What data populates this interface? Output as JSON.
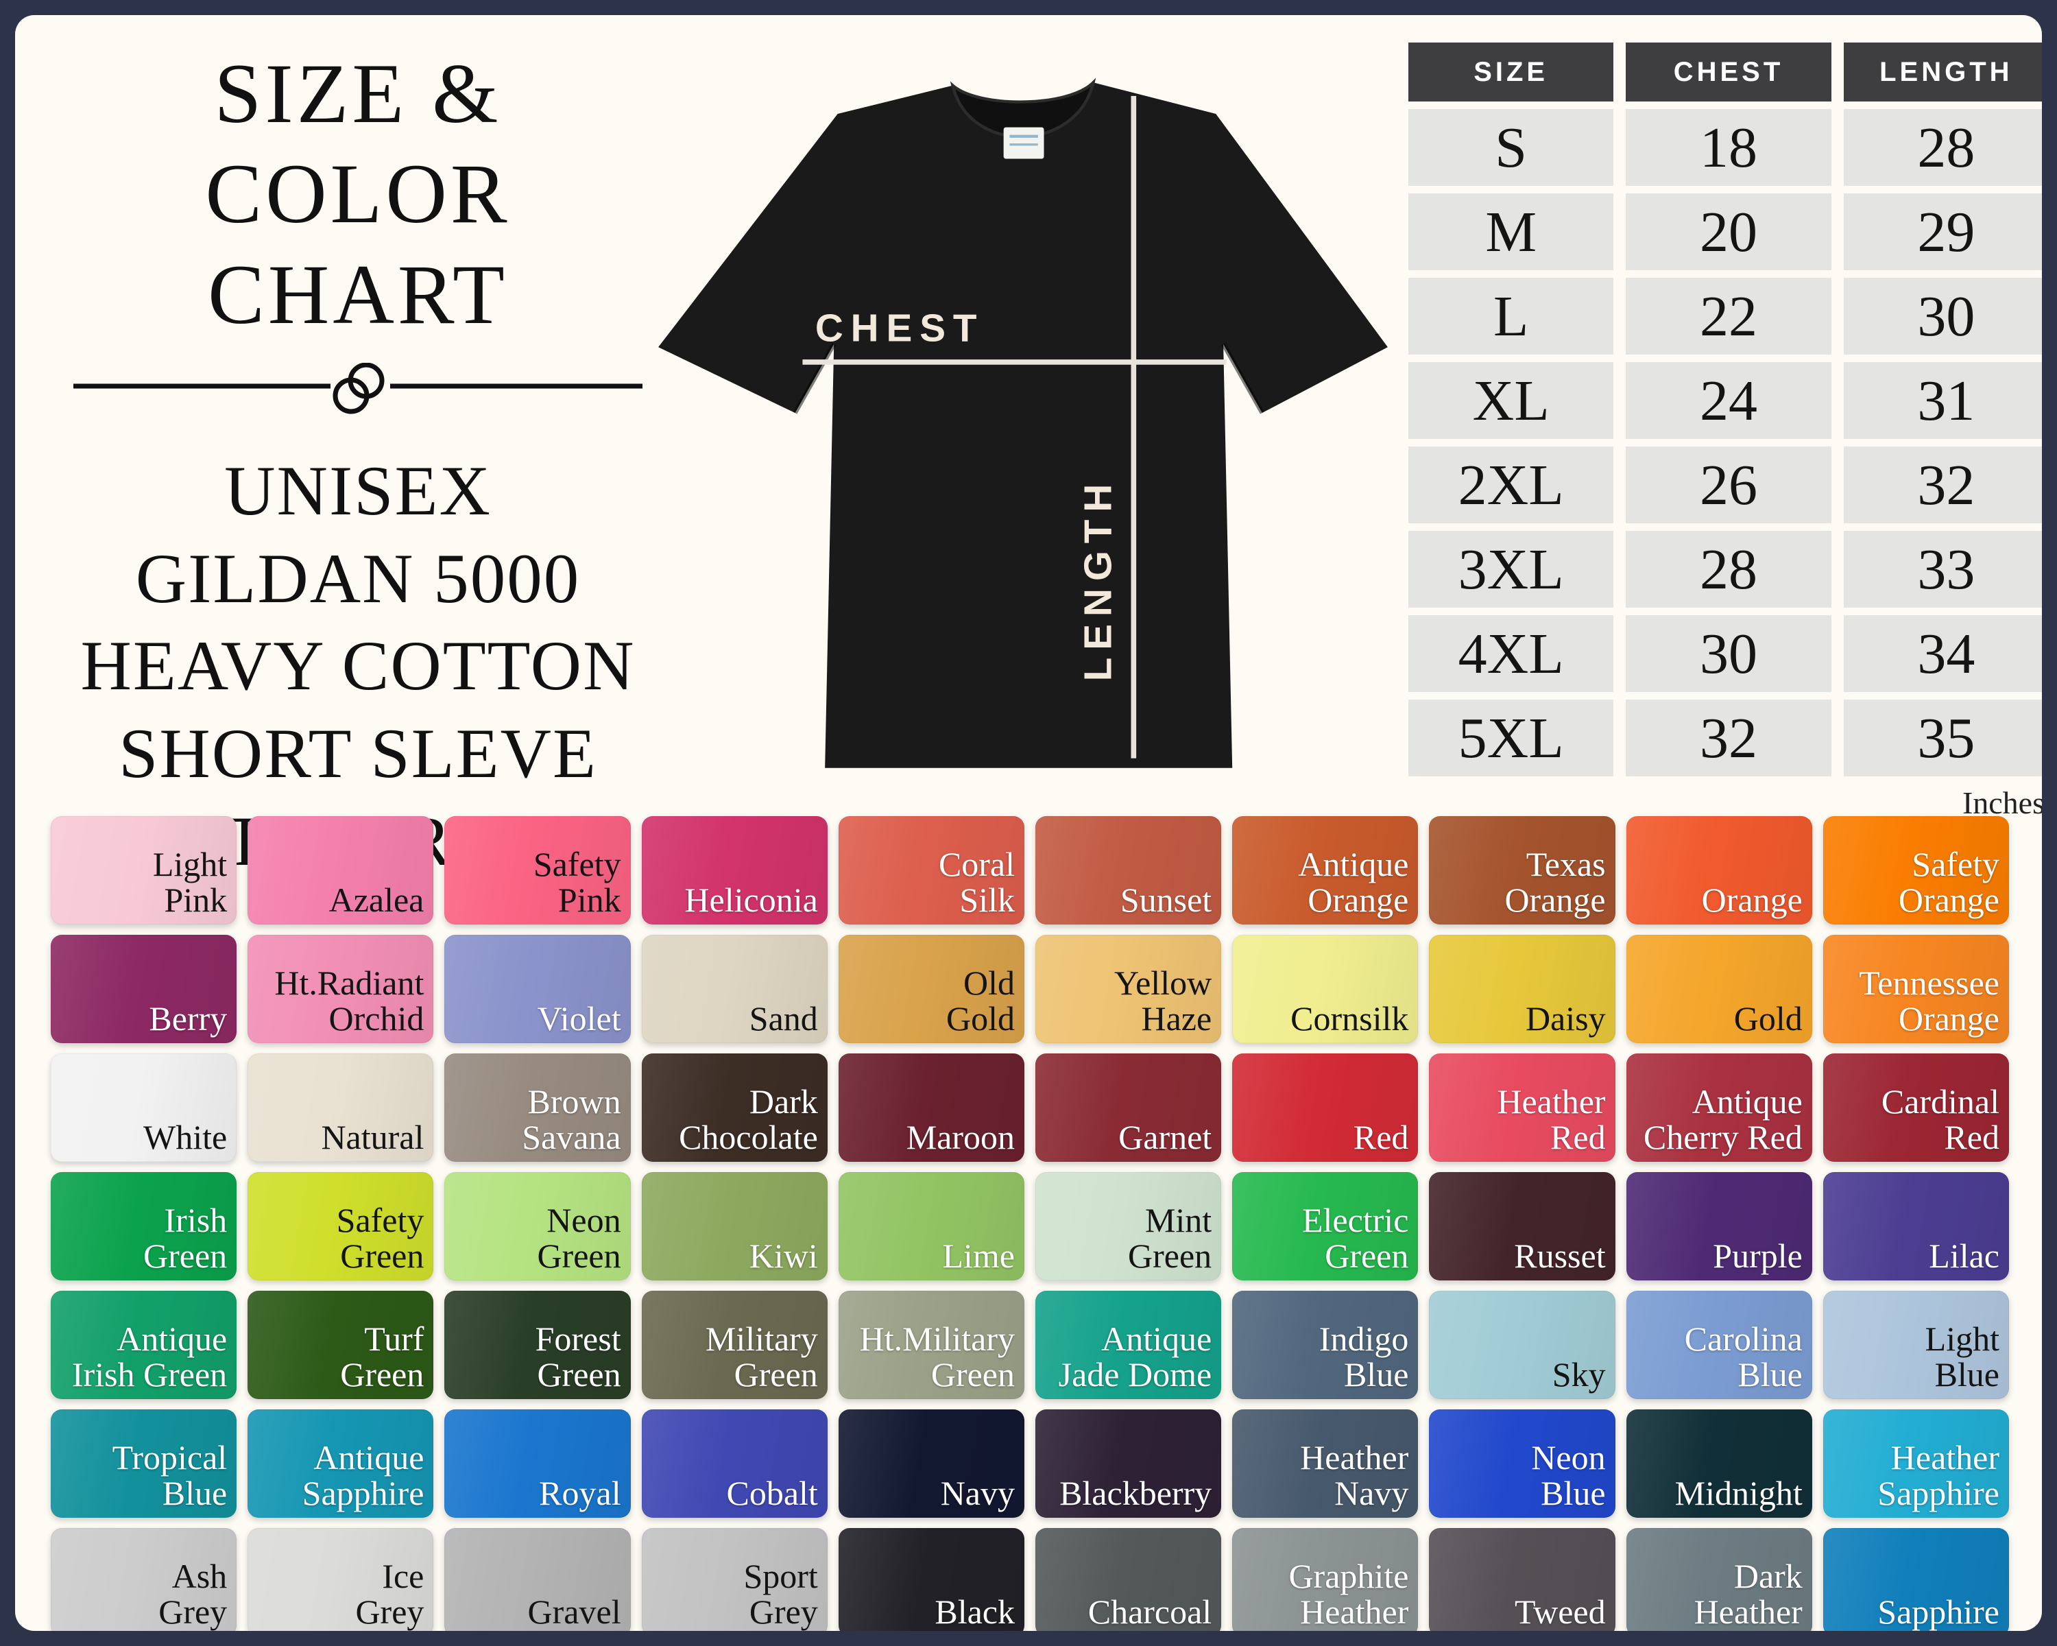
{
  "title": {
    "line1": "SIZE & COLOR",
    "line2": "CHART",
    "subtitle_lines": [
      "UNISEX",
      "GILDAN 5000",
      "HEAVY COTTON",
      "SHORT SLEVE",
      "T-SHIRT"
    ]
  },
  "shirt": {
    "chest_label": "CHEST",
    "length_label": "LENGTH",
    "shirt_color": "#1a1a1a",
    "line_color": "#e8e4dc"
  },
  "size_table": {
    "headers": [
      "SIZE",
      "CHEST",
      "LENGTH"
    ],
    "rows": [
      [
        "S",
        "18",
        "28"
      ],
      [
        "M",
        "20",
        "29"
      ],
      [
        "L",
        "22",
        "30"
      ],
      [
        "XL",
        "24",
        "31"
      ],
      [
        "2XL",
        "26",
        "32"
      ],
      [
        "3XL",
        "28",
        "33"
      ],
      [
        "4XL",
        "30",
        "34"
      ],
      [
        "5XL",
        "32",
        "35"
      ]
    ],
    "unit_label": "Inches",
    "header_bg": "#3e3e40",
    "cell_bg": "#e4e4e2"
  },
  "colors": {
    "swatches": [
      {
        "name": "Light Pink",
        "display": "Light\nPink",
        "hex": "#f7c9d6",
        "text": "dark"
      },
      {
        "name": "Azalea",
        "display": "Azalea",
        "hex": "#f480ac",
        "text": "dark"
      },
      {
        "name": "Safety Pink",
        "display": "Safety\nPink",
        "hex": "#fb6383",
        "text": "dark"
      },
      {
        "name": "Heliconia",
        "display": "Heliconia",
        "hex": "#d2336b",
        "text": "light"
      },
      {
        "name": "Coral Silk",
        "display": "Coral\nSilk",
        "hex": "#dd5e4c",
        "text": "light"
      },
      {
        "name": "Sunset",
        "display": "Sunset",
        "hex": "#c25b43",
        "text": "light"
      },
      {
        "name": "Antique Orange",
        "display": "Antique\nOrange",
        "hex": "#c95b2c",
        "text": "light"
      },
      {
        "name": "Texas Orange",
        "display": "Texas\nOrange",
        "hex": "#a5542d",
        "text": "light"
      },
      {
        "name": "Orange",
        "display": "Orange",
        "hex": "#f15a2d",
        "text": "light"
      },
      {
        "name": "Safety Orange",
        "display": "Safety\nOrange",
        "hex": "#fa7d00",
        "text": "light"
      },
      {
        "name": "Berry",
        "display": "Berry",
        "hex": "#8d2963",
        "text": "light"
      },
      {
        "name": "Ht.Radiant Orchid",
        "display": "Ht.Radiant\nOrchid",
        "hex": "#f28fb4",
        "text": "dark"
      },
      {
        "name": "Violet",
        "display": "Violet",
        "hex": "#8a93cb",
        "text": "light"
      },
      {
        "name": "Sand",
        "display": "Sand",
        "hex": "#ded5c2",
        "text": "dark"
      },
      {
        "name": "Old Gold",
        "display": "Old\nGold",
        "hex": "#d9a24b",
        "text": "dark"
      },
      {
        "name": "Yellow Haze",
        "display": "Yellow\nHaze",
        "hex": "#eec373",
        "text": "dark"
      },
      {
        "name": "Cornsilk",
        "display": "Cornsilk",
        "hex": "#f0ee8f",
        "text": "dark"
      },
      {
        "name": "Daisy",
        "display": "Daisy",
        "hex": "#e7c83b",
        "text": "dark"
      },
      {
        "name": "Gold",
        "display": "Gold",
        "hex": "#f5a62b",
        "text": "dark"
      },
      {
        "name": "Tennessee Orange",
        "display": "Tennessee\nOrange",
        "hex": "#f78621",
        "text": "light"
      },
      {
        "name": "White",
        "display": "White",
        "hex": "#f2f2f2",
        "text": "dark"
      },
      {
        "name": "Natural",
        "display": "Natural",
        "hex": "#e9e1d1",
        "text": "dark"
      },
      {
        "name": "Brown Savana",
        "display": "Brown\nSavana",
        "hex": "#978b81",
        "text": "light"
      },
      {
        "name": "Dark Chocolate",
        "display": "Dark\nChocolate",
        "hex": "#3c2d25",
        "text": "light"
      },
      {
        "name": "Maroon",
        "display": "Maroon",
        "hex": "#6b212f",
        "text": "light"
      },
      {
        "name": "Garnet",
        "display": "Garnet",
        "hex": "#8a2b34",
        "text": "light"
      },
      {
        "name": "Red",
        "display": "Red",
        "hex": "#d22b35",
        "text": "light"
      },
      {
        "name": "Heather Red",
        "display": "Heather\nRed",
        "hex": "#e84b60",
        "text": "light"
      },
      {
        "name": "Antique Cherry Red",
        "display": "Antique\nCherry Red",
        "hex": "#aa3140",
        "text": "light"
      },
      {
        "name": "Cardinal Red",
        "display": "Cardinal\nRed",
        "hex": "#9c2633",
        "text": "light"
      },
      {
        "name": "Irish Green",
        "display": "Irish\nGreen",
        "hex": "#0ba24d",
        "text": "light"
      },
      {
        "name": "Safety Green",
        "display": "Safety\nGreen",
        "hex": "#cfdf2b",
        "text": "dark"
      },
      {
        "name": "Neon Green",
        "display": "Neon\nGreen",
        "hex": "#b5e381",
        "text": "dark"
      },
      {
        "name": "Kiwi",
        "display": "Kiwi",
        "hex": "#8da95f",
        "text": "light"
      },
      {
        "name": "Lime",
        "display": "Lime",
        "hex": "#92c463",
        "text": "light"
      },
      {
        "name": "Mint Green",
        "display": "Mint\nGreen",
        "hex": "#cfe2cf",
        "text": "dark"
      },
      {
        "name": "Electric Green",
        "display": "Electric\nGreen",
        "hex": "#26b94f",
        "text": "light"
      },
      {
        "name": "Russet",
        "display": "Russet",
        "hex": "#432429",
        "text": "light"
      },
      {
        "name": "Purple",
        "display": "Purple",
        "hex": "#4e2a74",
        "text": "light"
      },
      {
        "name": "Lilac",
        "display": "Lilac",
        "hex": "#4c3d92",
        "text": "light"
      },
      {
        "name": "Antique Irish Green",
        "display": "Antique\nIrish Green",
        "hex": "#12a069",
        "text": "light"
      },
      {
        "name": "Turf Green",
        "display": "Turf\nGreen",
        "hex": "#2c5a17",
        "text": "light"
      },
      {
        "name": "Forest Green",
        "display": "Forest\nGreen",
        "hex": "#293e27",
        "text": "light"
      },
      {
        "name": "Military Green",
        "display": "Military\nGreen",
        "hex": "#6a6a51",
        "text": "light"
      },
      {
        "name": "Ht.Military Green",
        "display": "Ht.Military\nGreen",
        "hex": "#9ba188",
        "text": "light"
      },
      {
        "name": "Antique Jade Dome",
        "display": "Antique\nJade Dome",
        "hex": "#15a28b",
        "text": "light"
      },
      {
        "name": "Indigo Blue",
        "display": "Indigo\nBlue",
        "hex": "#51677e",
        "text": "light"
      },
      {
        "name": "Sky",
        "display": "Sky",
        "hex": "#a1ccd5",
        "text": "dark"
      },
      {
        "name": "Carolina Blue",
        "display": "Carolina\nBlue",
        "hex": "#7b9cd2",
        "text": "light"
      },
      {
        "name": "Light Blue",
        "display": "Light\nBlue",
        "hex": "#adc5dc",
        "text": "dark"
      },
      {
        "name": "Tropical Blue",
        "display": "Tropical\nBlue",
        "hex": "#12919c",
        "text": "light"
      },
      {
        "name": "Antique Sapphire",
        "display": "Antique\nSapphire",
        "hex": "#1596b3",
        "text": "light"
      },
      {
        "name": "Royal",
        "display": "Royal",
        "hex": "#1a76ce",
        "text": "light"
      },
      {
        "name": "Cobalt",
        "display": "Cobalt",
        "hex": "#4048b3",
        "text": "light"
      },
      {
        "name": "Navy",
        "display": "Navy",
        "hex": "#121830",
        "text": "light"
      },
      {
        "name": "Blackberry",
        "display": "Blackberry",
        "hex": "#2e2136",
        "text": "light"
      },
      {
        "name": "Heather Navy",
        "display": "Heather\nNavy",
        "hex": "#47596c",
        "text": "light"
      },
      {
        "name": "Neon Blue",
        "display": "Neon\nBlue",
        "hex": "#2148cc",
        "text": "light"
      },
      {
        "name": "Midnight",
        "display": "Midnight",
        "hex": "#112f38",
        "text": "light"
      },
      {
        "name": "Heather Sapphire",
        "display": "Heather\nSapphire",
        "hex": "#22add3",
        "text": "light"
      },
      {
        "name": "Ash Grey",
        "display": "Ash\nGrey",
        "hex": "#cccccc",
        "text": "dark"
      },
      {
        "name": "Ice Grey",
        "display": "Ice\nGrey",
        "hex": "#dbdbd9",
        "text": "dark"
      },
      {
        "name": "Gravel",
        "display": "Gravel",
        "hex": "#b3b3b3",
        "text": "dark"
      },
      {
        "name": "Sport Grey",
        "display": "Sport\nGrey",
        "hex": "#c2c2c2",
        "text": "dark"
      },
      {
        "name": "Black",
        "display": "Black",
        "hex": "#212127",
        "text": "light"
      },
      {
        "name": "Charcoal",
        "display": "Charcoal",
        "hex": "#545959",
        "text": "light"
      },
      {
        "name": "Graphite Heather",
        "display": "Graphite\nHeather",
        "hex": "#8c9393",
        "text": "light"
      },
      {
        "name": "Tweed",
        "display": "Tweed",
        "hex": "#555055",
        "text": "light"
      },
      {
        "name": "Dark Heather",
        "display": "Dark\nHeather",
        "hex": "#6d7c82",
        "text": "light"
      },
      {
        "name": "Sapphire",
        "display": "Sapphire",
        "hex": "#107fbb",
        "text": "light"
      }
    ]
  }
}
